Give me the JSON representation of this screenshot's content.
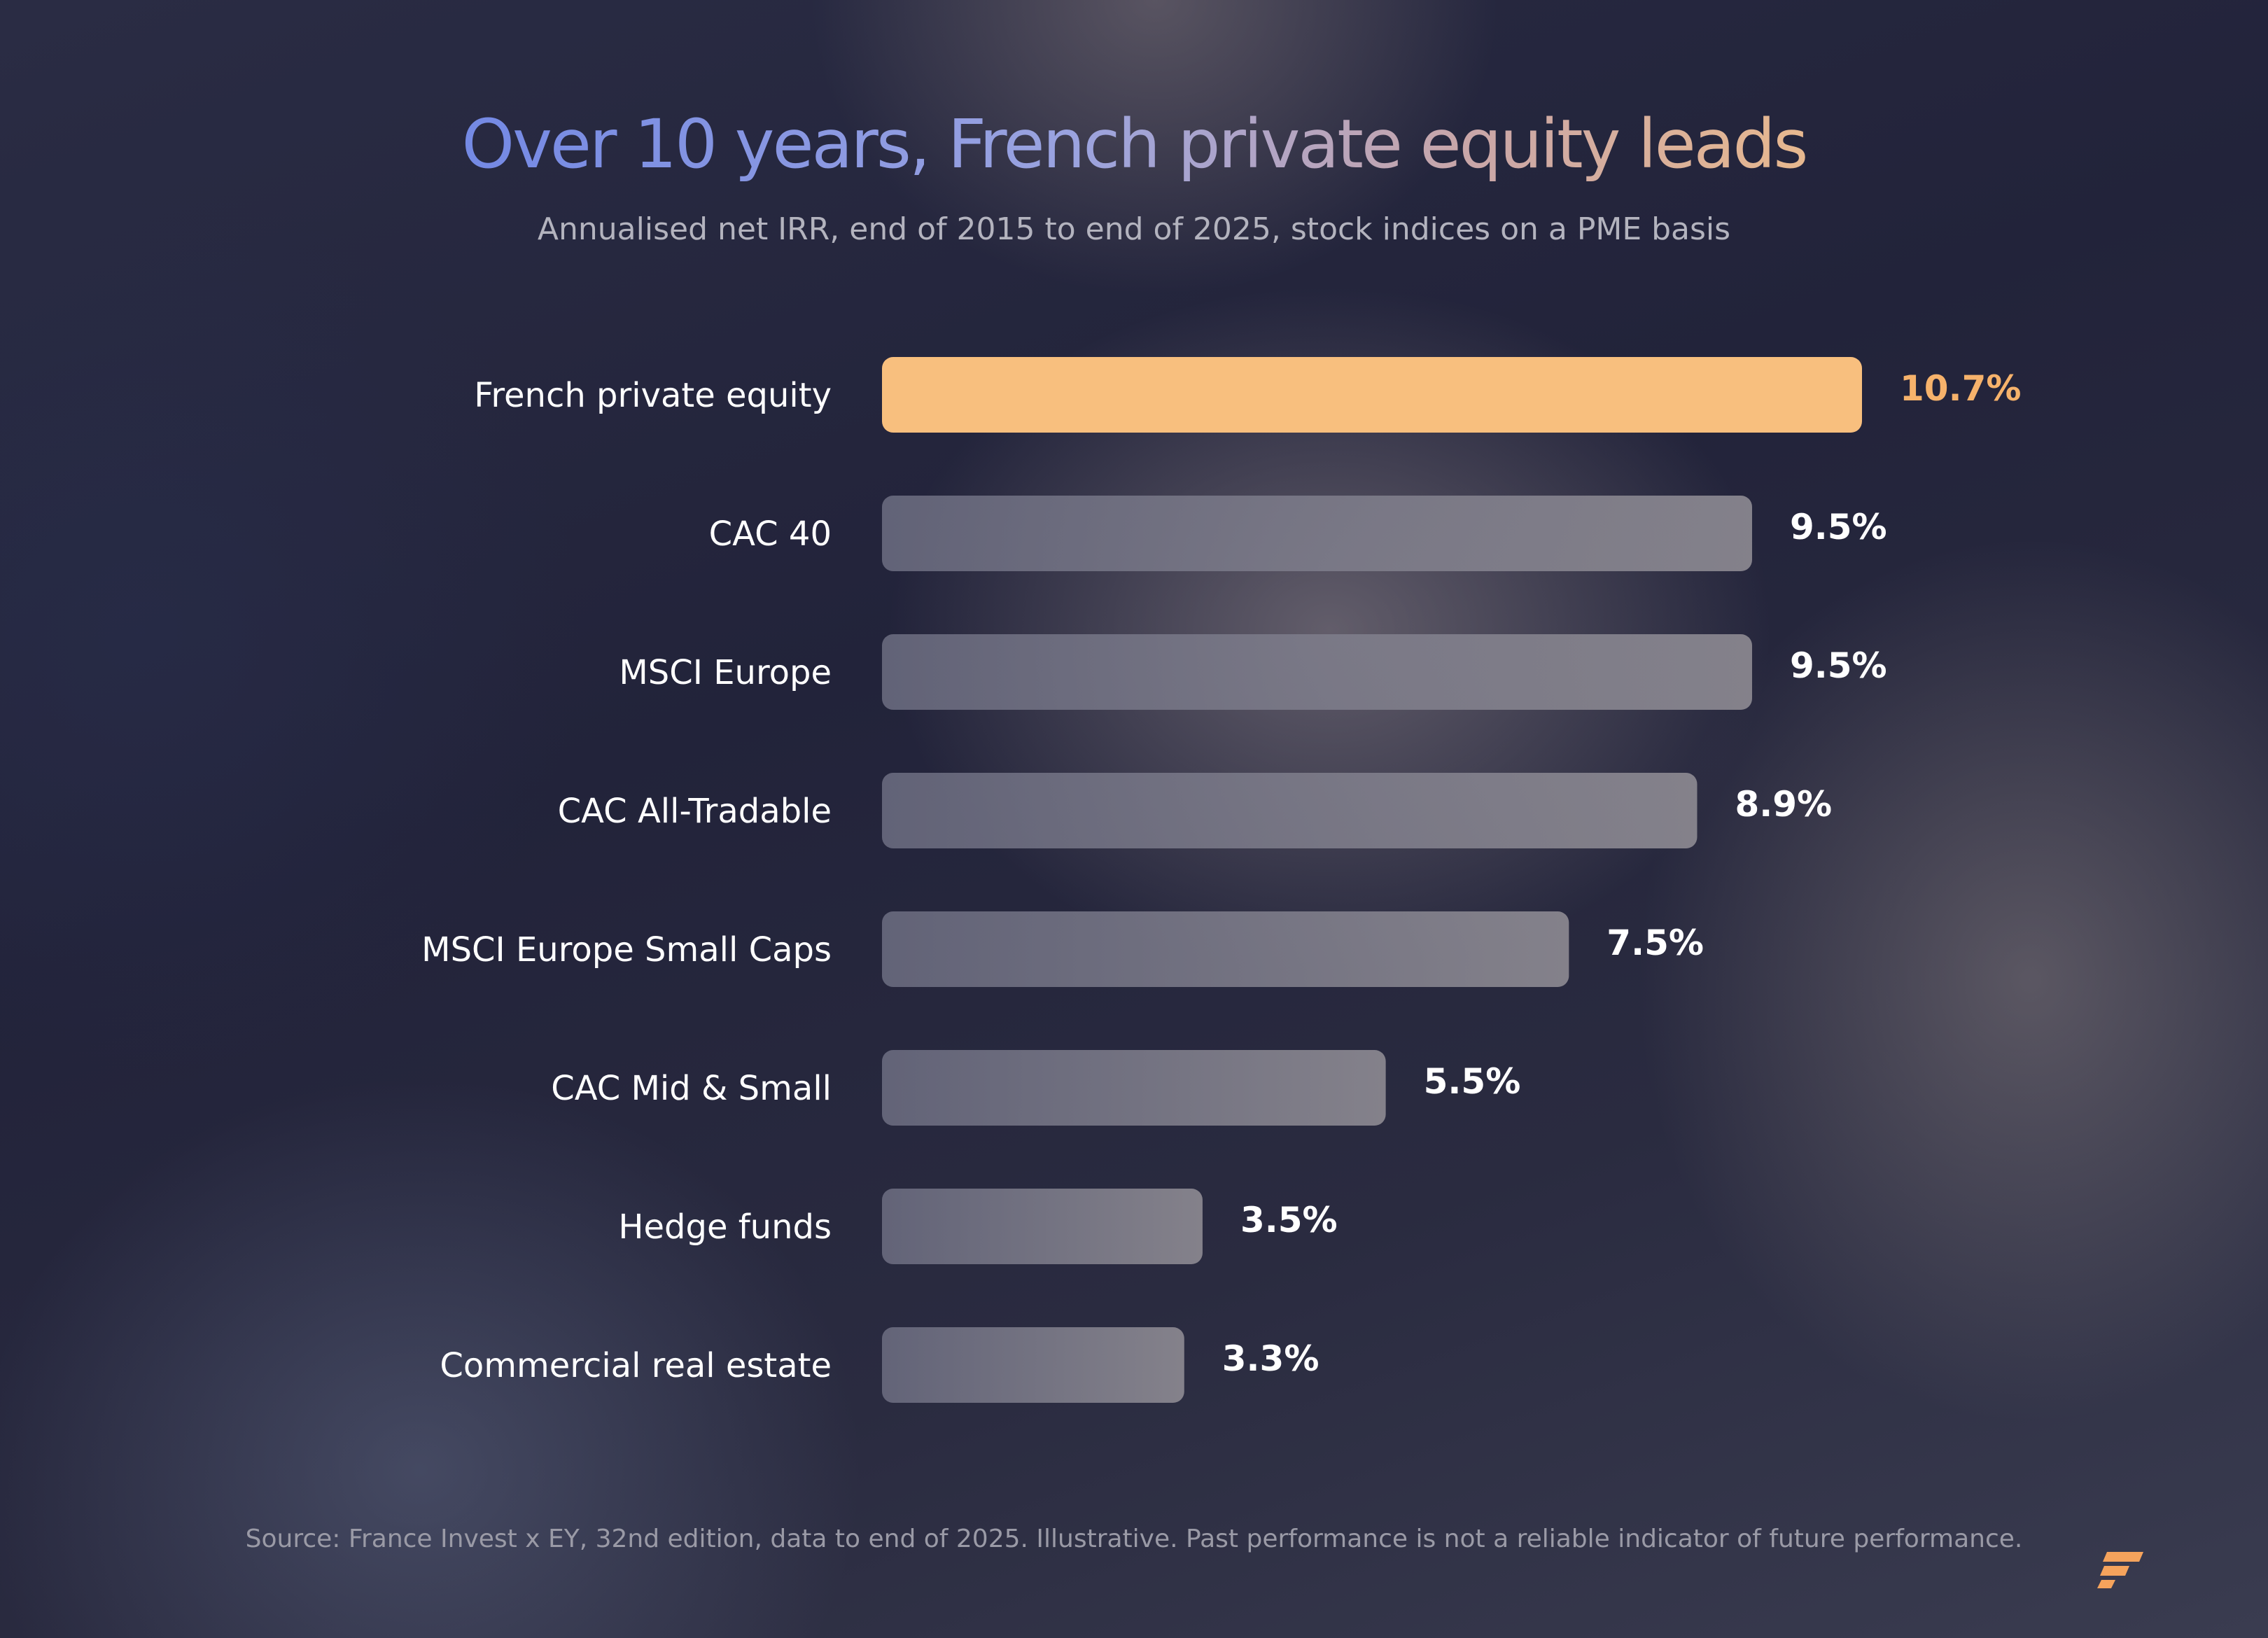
{
  "chart_data": {
    "type": "bar",
    "orientation": "horizontal",
    "title": "Over 10 years, French private equity leads",
    "subtitle": "Annualised net IRR, end of 2015 to end of 2025, stock indices on a PME basis",
    "categories": [
      "French private equity",
      "CAC 40",
      "MSCI Europe",
      "CAC All-Tradable",
      "MSCI Europe Small Caps",
      "CAC Mid & Small",
      "Hedge funds",
      "Commercial real estate"
    ],
    "values": [
      10.7,
      9.5,
      9.5,
      8.9,
      7.5,
      5.5,
      3.5,
      3.3
    ],
    "value_labels": [
      "10.7%",
      "9.5%",
      "9.5%",
      "8.9%",
      "7.5%",
      "5.5%",
      "3.5%",
      "3.3%"
    ],
    "highlight": "French private equity",
    "xlim": [
      0,
      10.7
    ],
    "grid": false,
    "colors": {
      "highlight": "#f8bf7e",
      "highlight_label": "#f6b26b",
      "bar": "#8a8794"
    }
  },
  "footer": {
    "source": "Source: France Invest x EY, 32nd edition, data to end of 2025. Illustrative. Past performance is not a reliable indicator of future performance."
  },
  "logo": {
    "icon": "brand-logo-icon",
    "color": "#f5a35c"
  }
}
